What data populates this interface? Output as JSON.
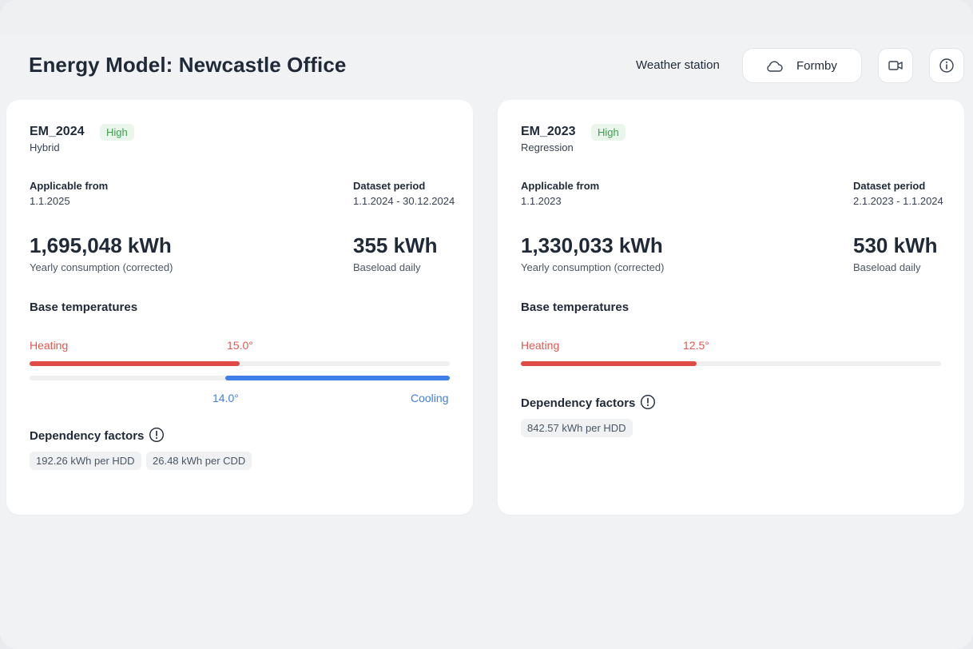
{
  "header": {
    "title": "Energy Model: Newcastle Office",
    "weather_station_label": "Weather station",
    "weather_station_value": "Formby",
    "icons": [
      "cloud-icon",
      "video-icon",
      "info-icon"
    ]
  },
  "cards": [
    {
      "name": "EM_2024",
      "badge": "High",
      "type": "Hybrid",
      "applicable_from_label": "Applicable from",
      "applicable_from": "1.1.2025",
      "dataset_period_label": "Dataset period",
      "dataset_period": "1.1.2024 - 30.12.2024",
      "yearly_consumption": "1,695,048 kWh",
      "yearly_consumption_label": "Yearly consumption (corrected)",
      "baseload": "355 kWh",
      "baseload_label": "Baseload daily",
      "base_temps_title": "Base temperatures",
      "heating_label": "Heating",
      "heating_value": "15.0°",
      "heating_fraction": 0.5,
      "cooling_label": "Cooling",
      "cooling_value": "14.0°",
      "cooling_fraction": 0.53,
      "dependency_title": "Dependency factors",
      "factors": [
        "192.26 kWh per HDD",
        "26.48 kWh per CDD"
      ]
    },
    {
      "name": "EM_2023",
      "badge": "High",
      "type": "Regression",
      "applicable_from_label": "Applicable from",
      "applicable_from": "1.1.2023",
      "dataset_period_label": "Dataset period",
      "dataset_period": "2.1.2023 - 1.1.2024",
      "yearly_consumption": "1,330,033 kWh",
      "yearly_consumption_label": "Yearly consumption (corrected)",
      "baseload": "530 kWh",
      "baseload_label": "Baseload daily",
      "base_temps_title": "Base temperatures",
      "heating_label": "Heating",
      "heating_value": "12.5°",
      "heating_fraction": 0.42,
      "dependency_title": "Dependency factors",
      "factors": [
        "842.57 kWh per HDD"
      ]
    }
  ],
  "colors": {
    "heating": "#e04a45",
    "cooling": "#3f7ee8",
    "badge_green": "#3aa14b"
  }
}
